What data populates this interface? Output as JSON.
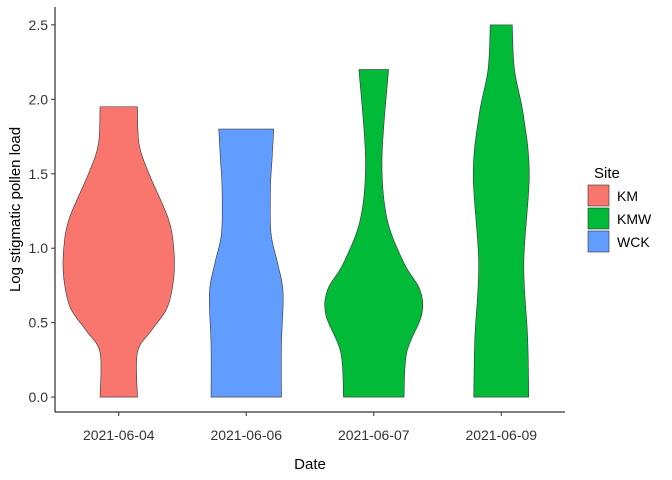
{
  "chart_data": {
    "type": "violin",
    "xlabel": "Date",
    "ylabel": "Log stigmatic pollen load",
    "ylim": [
      -0.1,
      2.62
    ],
    "yticks": [
      0.0,
      0.5,
      1.0,
      1.5,
      2.0,
      2.5
    ],
    "ytick_labels": [
      "0.0",
      "0.5",
      "1.0",
      "1.5",
      "2.0",
      "2.5"
    ],
    "categories": [
      "2021-06-04",
      "2021-06-06",
      "2021-06-07",
      "2021-06-09"
    ],
    "grid": false,
    "legend": {
      "title": "Site",
      "position": "right",
      "entries": [
        {
          "label": "KM",
          "color": "#F8766D"
        },
        {
          "label": "KMW",
          "color": "#00BA38"
        },
        {
          "label": "WCK",
          "color": "#619CFF"
        }
      ]
    },
    "violins": [
      {
        "category": "2021-06-04",
        "site": "KM",
        "color": "#F8766D",
        "range": [
          0.0,
          1.95
        ],
        "profile": [
          [
            0.0,
            0.34
          ],
          [
            0.3,
            0.34
          ],
          [
            0.45,
            0.6
          ],
          [
            0.6,
            0.88
          ],
          [
            0.8,
            1.0
          ],
          [
            1.0,
            1.0
          ],
          [
            1.2,
            0.9
          ],
          [
            1.5,
            0.55
          ],
          [
            1.7,
            0.37
          ],
          [
            1.95,
            0.34
          ]
        ]
      },
      {
        "category": "2021-06-06",
        "site": "WCK",
        "color": "#619CFF",
        "range": [
          0.0,
          1.8
        ],
        "profile": [
          [
            0.0,
            0.64
          ],
          [
            0.35,
            0.64
          ],
          [
            0.7,
            0.67
          ],
          [
            0.9,
            0.57
          ],
          [
            1.1,
            0.45
          ],
          [
            1.4,
            0.44
          ],
          [
            1.6,
            0.47
          ],
          [
            1.8,
            0.5
          ]
        ]
      },
      {
        "category": "2021-06-07",
        "site": "KMW",
        "color": "#00BA38",
        "range": [
          0.0,
          2.2
        ],
        "profile": [
          [
            0.0,
            0.55
          ],
          [
            0.3,
            0.6
          ],
          [
            0.55,
            0.87
          ],
          [
            0.72,
            0.84
          ],
          [
            0.9,
            0.55
          ],
          [
            1.2,
            0.24
          ],
          [
            1.6,
            0.15
          ],
          [
            2.2,
            0.27
          ]
        ]
      },
      {
        "category": "2021-06-09",
        "site": "KMW",
        "color": "#00BA38",
        "range": [
          0.0,
          2.5
        ],
        "profile": [
          [
            0.0,
            0.5
          ],
          [
            0.4,
            0.48
          ],
          [
            0.9,
            0.41
          ],
          [
            1.5,
            0.51
          ],
          [
            1.9,
            0.4
          ],
          [
            2.2,
            0.24
          ],
          [
            2.5,
            0.2
          ]
        ]
      }
    ]
  }
}
